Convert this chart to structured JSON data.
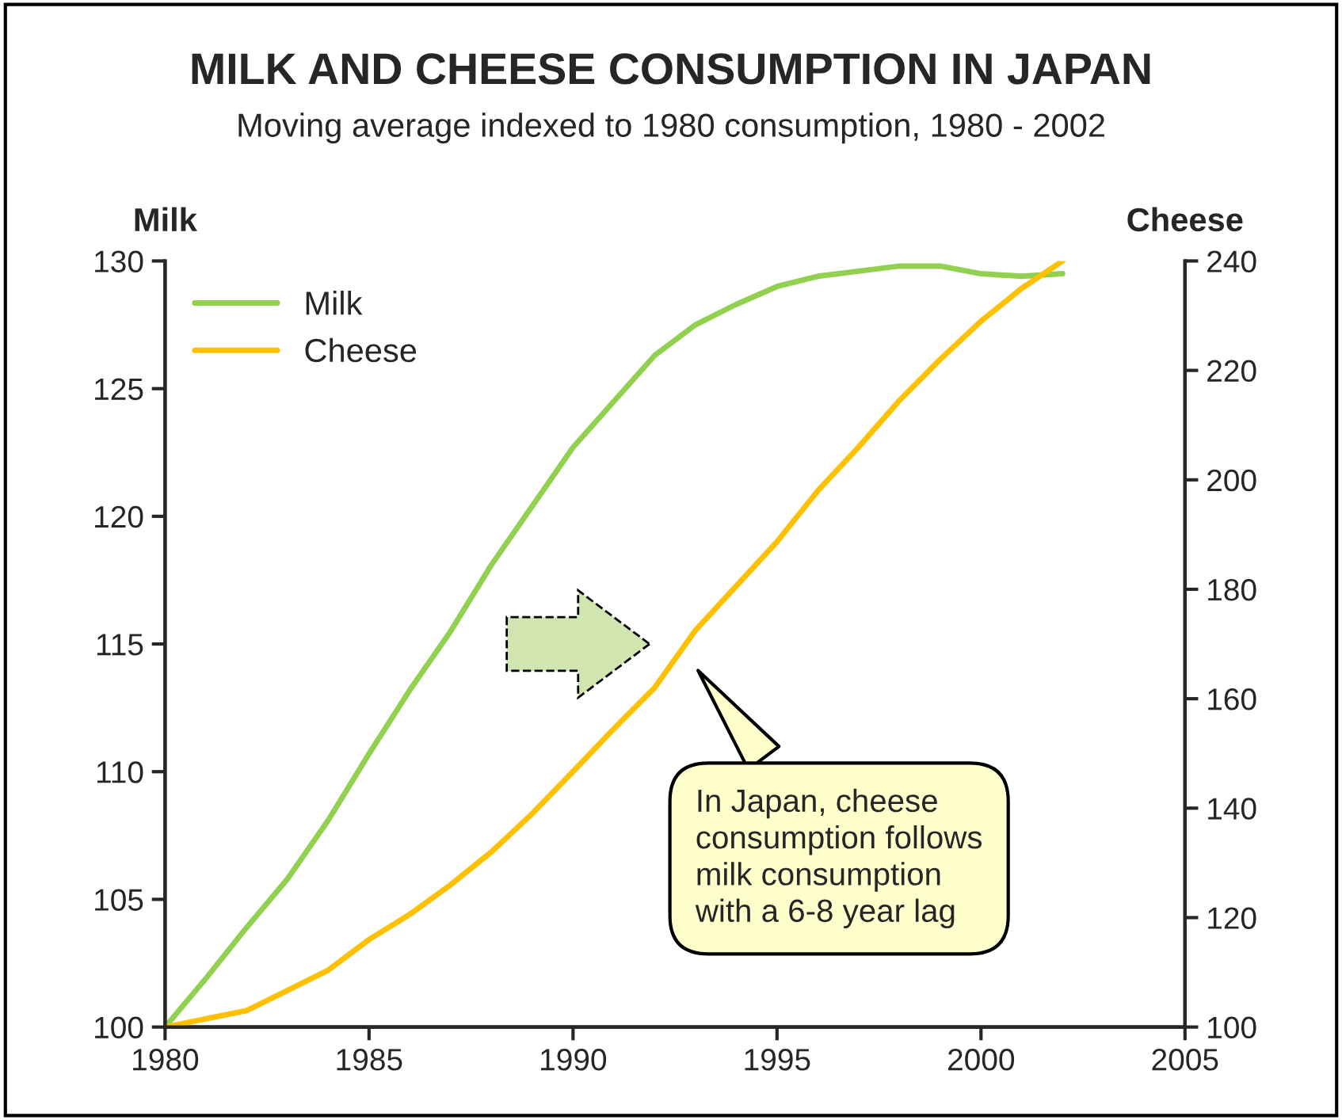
{
  "chart_data": {
    "type": "line",
    "title": "MILK AND CHEESE CONSUMPTION IN JAPAN",
    "subtitle": "Moving average indexed to 1980 consumption, 1980 - 2002",
    "ylabel": "Milk",
    "y2label": "Cheese",
    "x": [
      1980,
      1981,
      1982,
      1983,
      1984,
      1985,
      1986,
      1987,
      1988,
      1989,
      1990,
      1991,
      1992,
      1993,
      1994,
      1995,
      1996,
      1997,
      1998,
      1999,
      2000,
      2001,
      2002
    ],
    "series": [
      {
        "name": "Milk",
        "color": "#92d050",
        "values": [
          100,
          101.9,
          103.9,
          105.8,
          108.1,
          110.7,
          113.2,
          115.5,
          118.1,
          120.4,
          122.7,
          124.5,
          126.3,
          127.5,
          128.3,
          129.0,
          129.4,
          129.6,
          129.8,
          129.8,
          129.5,
          129.4,
          129.5
        ]
      },
      {
        "name": "Cheese",
        "color": "#ffc000",
        "axis": "y2",
        "values": [
          100,
          101.5,
          103,
          106.7,
          110.4,
          116,
          120.6,
          126,
          132,
          139,
          146.7,
          154.5,
          162,
          172.5,
          180.6,
          188.7,
          198,
          206,
          214.5,
          222,
          229,
          235,
          240
        ]
      }
    ],
    "xlim": [
      1980,
      2005
    ],
    "xticks": [
      1980,
      1985,
      1990,
      1995,
      2000,
      2005
    ],
    "ylim": [
      100,
      130
    ],
    "yticks": [
      100,
      105,
      110,
      115,
      120,
      125,
      130
    ],
    "y2lim": [
      100,
      240
    ],
    "y2ticks": [
      100,
      120,
      140,
      160,
      180,
      200,
      220,
      240
    ],
    "grid": false,
    "legend": "top left",
    "marker": "none",
    "line_style": "solid",
    "annotations": [
      "In Japan, cheese\nconsumption follows\nmilk consumption\nwith a 6-8 year lag"
    ]
  }
}
